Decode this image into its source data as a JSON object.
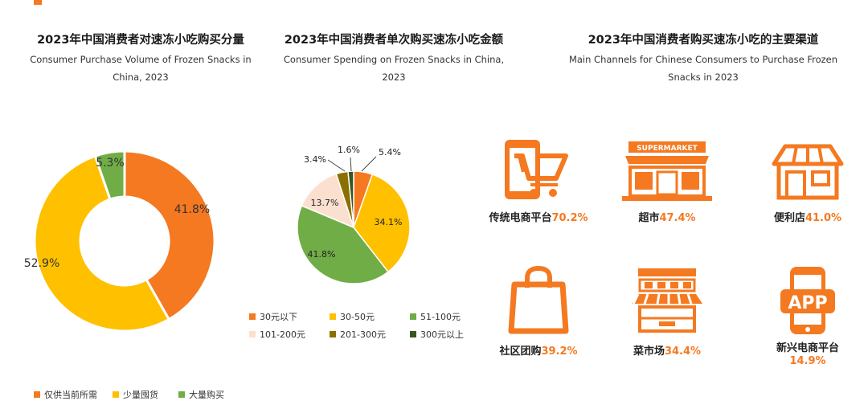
{
  "colors": {
    "orange": "#f47920",
    "yellow": "#ffc000",
    "green": "#70ad47",
    "pink": "#fbe0d0",
    "olive": "#8b7000",
    "darkgreen": "#375623"
  },
  "panels": {
    "volume": {
      "title_cn": "2023年中国消费者对速冻小吃购买分量",
      "title_en": "Consumer Purchase Volume of Frozen Snacks in China, 2023"
    },
    "spending": {
      "title_cn": "2023年中国消费者单次购买速冻小吃金额",
      "title_en": "Consumer Spending on Frozen Snacks in China, 2023"
    },
    "channels": {
      "title_cn": "2023年中国消费者购买速冻小吃的主要渠道",
      "title_en": "Main Channels for Chinese Consumers to Purchase Frozen Snacks in 2023",
      "items": [
        {
          "name": "传统电商平台",
          "value": "70.2%",
          "icon": "phone-cart-icon"
        },
        {
          "name": "超市",
          "value": "47.4%",
          "icon": "supermarket-icon"
        },
        {
          "name": "便利店",
          "value": "41.0%",
          "icon": "convenience-store-icon"
        },
        {
          "name": "社区团购",
          "value": "39.2%",
          "icon": "shopping-bag-icon"
        },
        {
          "name": "菜市场",
          "value": "34.4%",
          "icon": "market-stall-icon"
        },
        {
          "name": "新兴电商平台",
          "value": "14.9%",
          "icon": "app-phone-icon"
        }
      ]
    }
  },
  "chart_data": [
    {
      "type": "pie",
      "variant": "donut",
      "title": "2023年中国消费者对速冻小吃购买分量",
      "categories": [
        "仅供当前所需",
        "少量囤货",
        "大量购买"
      ],
      "values": [
        41.8,
        52.9,
        5.3
      ],
      "labels": [
        "41.8%",
        "52.9%",
        "5.3%"
      ],
      "legend": "bottom"
    },
    {
      "type": "pie",
      "title": "2023年中国消费者单次购买速冻小吃金额",
      "categories": [
        "30元以下",
        "30-50元",
        "51-100元",
        "101-200元",
        "201-300元",
        "300元以上"
      ],
      "values": [
        5.4,
        34.1,
        41.8,
        13.7,
        3.4,
        1.6
      ],
      "labels": [
        "5.4%",
        "34.1%",
        "41.8%",
        "13.7%",
        "3.4%",
        "1.6%"
      ],
      "legend": "bottom"
    }
  ]
}
